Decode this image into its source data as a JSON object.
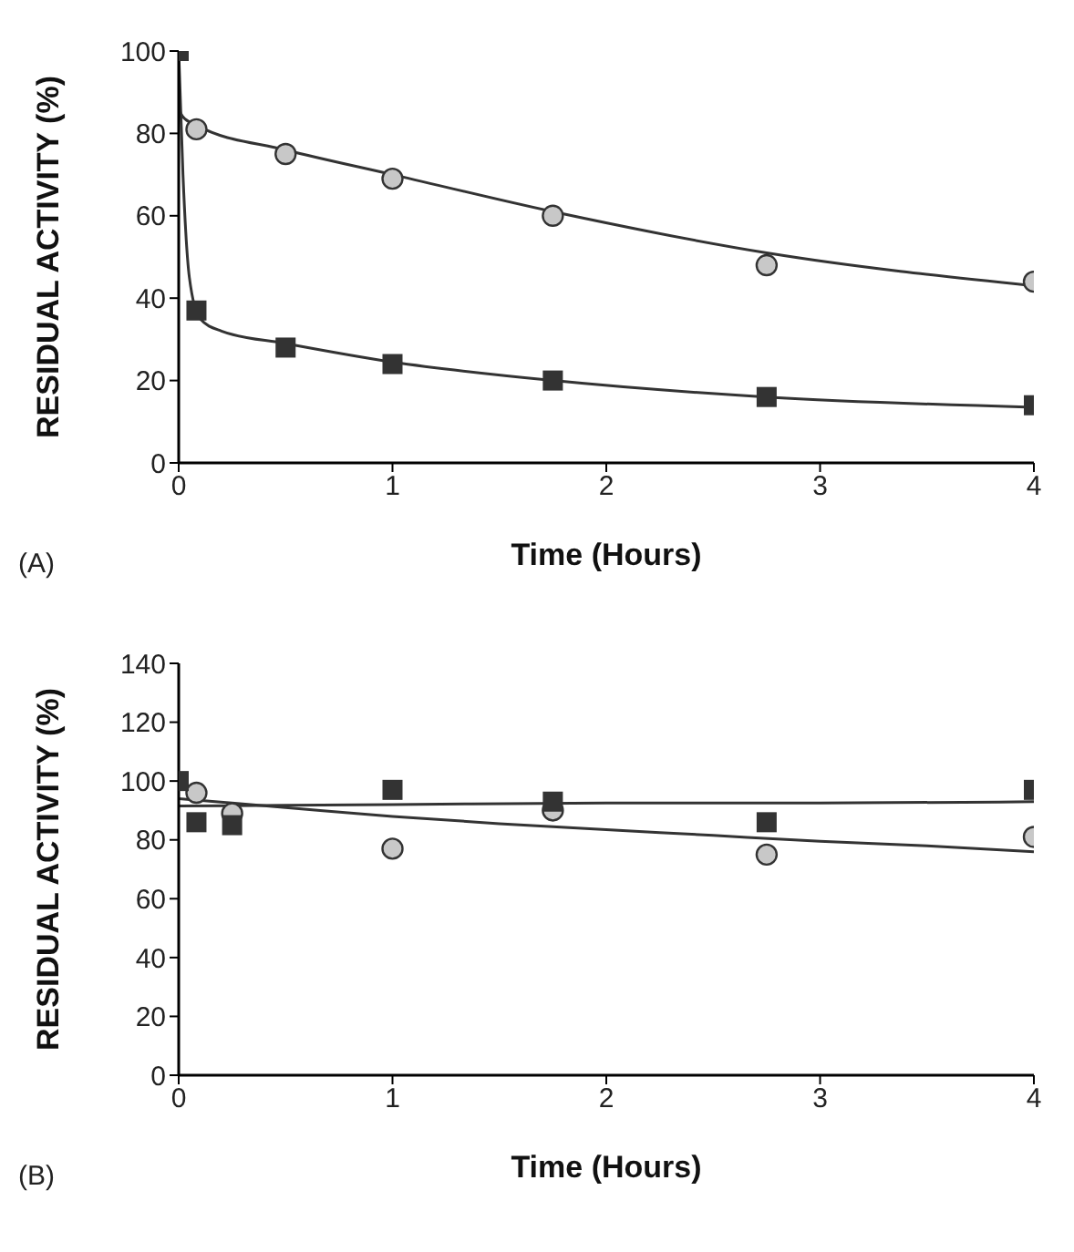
{
  "chart_data": [
    {
      "type": "scatter",
      "xlabel": "Time (Hours)",
      "ylabel": "RESIDUAL ACTIVITY (%)",
      "annotations": [
        "(A)"
      ],
      "xlim": [
        0,
        4
      ],
      "xticks": [
        0,
        1,
        2,
        3,
        4
      ],
      "ylim": [
        0,
        100
      ],
      "yticks": [
        0,
        20,
        40,
        60,
        80,
        100
      ],
      "series": [
        {
          "marker": "circle",
          "color": "#c8c8c8",
          "x": [
            0.083,
            0.5,
            1,
            1.75,
            2.75,
            4
          ],
          "values": [
            81,
            75,
            69,
            60,
            48,
            44
          ]
        },
        {
          "marker": "square",
          "color": "#333333",
          "x": [
            0,
            0.083,
            0.5,
            1,
            1.75,
            2.75,
            4
          ],
          "values": [
            100,
            37,
            28,
            24,
            20,
            16,
            14
          ]
        },
        {
          "type": "line",
          "marker": "none",
          "color": "#333333",
          "x": [
            0,
            0.02,
            0.083,
            0.5,
            1,
            1.75,
            2.75,
            4
          ],
          "values": [
            86,
            84,
            82,
            76,
            70,
            61,
            51,
            43
          ]
        },
        {
          "type": "line",
          "marker": "none",
          "color": "#333333",
          "x": [
            0,
            0.02,
            0.05,
            0.1,
            0.2,
            0.5,
            1,
            1.75,
            2.75,
            4
          ],
          "values": [
            100,
            70,
            45,
            35,
            32,
            29,
            24.5,
            20,
            16,
            13.5
          ]
        }
      ]
    },
    {
      "type": "scatter",
      "xlabel": "Time (Hours)",
      "ylabel": "RESIDUAL ACTIVITY (%)",
      "annotations": [
        "(B)"
      ],
      "xlim": [
        0,
        4
      ],
      "xticks": [
        0,
        1,
        2,
        3,
        4
      ],
      "ylim": [
        0,
        140
      ],
      "yticks": [
        0,
        20,
        40,
        60,
        80,
        100,
        120,
        140
      ],
      "series": [
        {
          "marker": "circle",
          "color": "#c8c8c8",
          "x": [
            0.083,
            0.25,
            1,
            1.75,
            2.75,
            4
          ],
          "values": [
            96,
            89,
            77,
            90,
            75,
            81
          ]
        },
        {
          "marker": "square",
          "color": "#333333",
          "x": [
            0,
            0.083,
            0.25,
            1,
            1.75,
            2.75,
            4
          ],
          "values": [
            100,
            86,
            85,
            97,
            93,
            86,
            97
          ]
        },
        {
          "type": "line",
          "marker": "none",
          "color": "#333333",
          "x": [
            0,
            0.5,
            1,
            1.5,
            2,
            2.5,
            3,
            3.5,
            4
          ],
          "values": [
            94,
            91,
            88,
            85.5,
            83.5,
            81.5,
            79.5,
            78,
            76
          ]
        },
        {
          "type": "line",
          "marker": "none",
          "color": "#333333",
          "x": [
            0,
            1,
            2,
            3,
            4
          ],
          "values": [
            91.5,
            92,
            92.5,
            92.5,
            93
          ]
        }
      ]
    }
  ]
}
